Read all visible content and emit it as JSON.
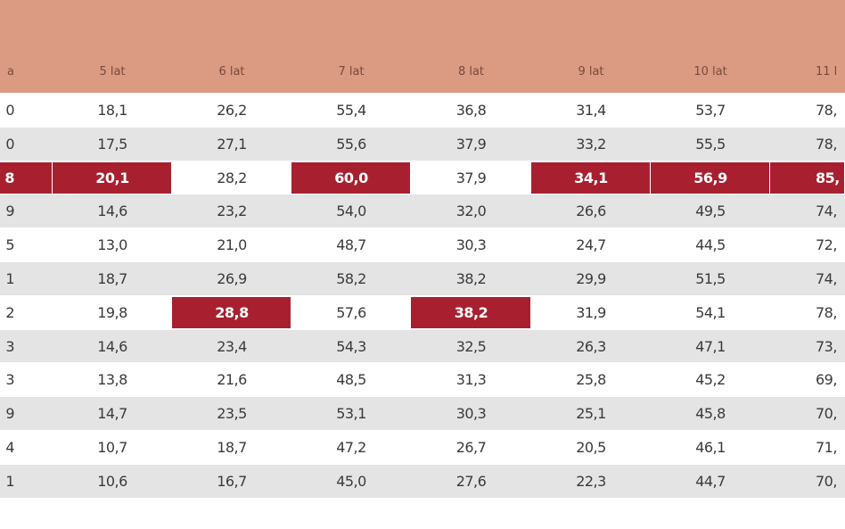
{
  "table": {
    "header": [
      "a",
      "5 lat",
      "6 lat",
      "7 lat",
      "8 lat",
      "9 lat",
      "10 lat",
      "11 l"
    ],
    "rows": [
      [
        "0",
        "18,1",
        "26,2",
        "55,4",
        "36,8",
        "31,4",
        "53,7",
        "78,"
      ],
      [
        "0",
        "17,5",
        "27,1",
        "55,6",
        "37,9",
        "33,2",
        "55,5",
        "78,"
      ],
      [
        "8",
        "20,1",
        "28,2",
        "60,0",
        "37,9",
        "34,1",
        "56,9",
        "85,"
      ],
      [
        "9",
        "14,6",
        "23,2",
        "54,0",
        "32,0",
        "26,6",
        "49,5",
        "74,"
      ],
      [
        "5",
        "13,0",
        "21,0",
        "48,7",
        "30,3",
        "24,7",
        "44,5",
        "72,"
      ],
      [
        "1",
        "18,7",
        "26,9",
        "58,2",
        "38,2",
        "29,9",
        "51,5",
        "74,"
      ],
      [
        "2",
        "19,8",
        "28,8",
        "57,6",
        "38,2",
        "31,9",
        "54,1",
        "78,"
      ],
      [
        "3",
        "14,6",
        "23,4",
        "54,3",
        "32,5",
        "26,3",
        "47,1",
        "73,"
      ],
      [
        "3",
        "13,8",
        "21,6",
        "48,5",
        "31,3",
        "25,8",
        "45,2",
        "69,"
      ],
      [
        "9",
        "14,7",
        "23,5",
        "53,1",
        "30,3",
        "25,1",
        "45,8",
        "70,"
      ],
      [
        "4",
        "10,7",
        "18,7",
        "47,2",
        "26,7",
        "20,5",
        "46,1",
        "71,"
      ],
      [
        "1",
        "10,6",
        "16,7",
        "45,0",
        "27,6",
        "22,3",
        "44,7",
        "70,"
      ]
    ],
    "highlighted": [
      [],
      [],
      [
        0,
        1,
        3,
        5,
        6,
        7
      ],
      [],
      [],
      [],
      [
        2,
        4
      ],
      [],
      [],
      [],
      [],
      []
    ]
  }
}
